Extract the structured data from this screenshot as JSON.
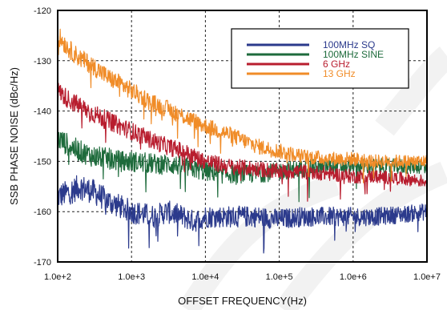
{
  "chart_data": {
    "type": "line",
    "title": "",
    "xlabel": "OFFSET FREQUENCY(Hz)",
    "ylabel": "SSB PHASE NOISE (dBc/Hz)",
    "x_scale": "log",
    "xlim": [
      100,
      10000000
    ],
    "ylim": [
      -170,
      -120
    ],
    "x_ticks": [
      100,
      1000,
      10000,
      100000,
      1000000,
      10000000
    ],
    "x_tick_labels": [
      "1.0e+2",
      "1.0e+3",
      "1.0e+4",
      "1.0e+5",
      "1.0e+6",
      "1.0e+7"
    ],
    "y_ticks": [
      -170,
      -160,
      -150,
      -140,
      -130,
      -120
    ],
    "y_tick_labels": [
      "-170",
      "-160",
      "-150",
      "-140",
      "-130",
      "-120"
    ],
    "grid": true,
    "grid_style": "dashed",
    "legend_position": "top-right",
    "series": [
      {
        "name": "100MHz SQ",
        "color": "#2b3a8c",
        "noise_amplitude": 1.6,
        "x": [
          100,
          150,
          200,
          300,
          500,
          700,
          1000,
          2000,
          3000,
          5000,
          7000,
          10000,
          20000,
          50000,
          100000,
          200000,
          500000,
          1000000,
          2000000,
          5000000,
          10000000
        ],
        "y": [
          -157,
          -156,
          -155,
          -156,
          -158,
          -159,
          -160,
          -161,
          -160,
          -161,
          -162,
          -161,
          -161,
          -161,
          -161.5,
          -161,
          -161,
          -161,
          -161,
          -160.5,
          -160
        ]
      },
      {
        "name": "100MHz SINE",
        "color": "#1e6b3c",
        "noise_amplitude": 1.4,
        "x": [
          100,
          150,
          200,
          300,
          500,
          700,
          1000,
          2000,
          3000,
          5000,
          7000,
          10000,
          20000,
          50000,
          100000,
          200000,
          500000,
          1000000,
          2000000,
          5000000,
          10000000
        ],
        "y": [
          -145.5,
          -147,
          -148,
          -149,
          -149.5,
          -150,
          -150,
          -150.5,
          -150.5,
          -151,
          -151.5,
          -152,
          -152.5,
          -152.5,
          -152,
          -151.5,
          -151,
          -151,
          -151,
          -151,
          -151
        ]
      },
      {
        "name": "6 GHz",
        "color": "#b81d2e",
        "noise_amplitude": 1.2,
        "x": [
          100,
          150,
          200,
          300,
          500,
          700,
          1000,
          2000,
          3000,
          5000,
          7000,
          10000,
          20000,
          50000,
          100000,
          200000,
          500000,
          1000000,
          2000000,
          5000000,
          10000000
        ],
        "y": [
          -136,
          -138,
          -139,
          -140.5,
          -142,
          -143,
          -144,
          -146,
          -147,
          -148,
          -149,
          -150,
          -151,
          -151.5,
          -152,
          -152,
          -152.5,
          -153,
          -153,
          -153.5,
          -154
        ]
      },
      {
        "name": "13 GHz",
        "color": "#f08c28",
        "noise_amplitude": 1.2,
        "x": [
          100,
          150,
          200,
          300,
          500,
          700,
          1000,
          2000,
          3000,
          5000,
          7000,
          10000,
          20000,
          50000,
          100000,
          200000,
          500000,
          1000000,
          2000000,
          5000000,
          10000000
        ],
        "y": [
          -125,
          -128,
          -129.5,
          -131,
          -133.5,
          -134.5,
          -136,
          -138.5,
          -139.5,
          -141,
          -142,
          -143,
          -144.5,
          -147,
          -148,
          -149,
          -149.5,
          -149.5,
          -150,
          -150,
          -150
        ]
      }
    ]
  }
}
